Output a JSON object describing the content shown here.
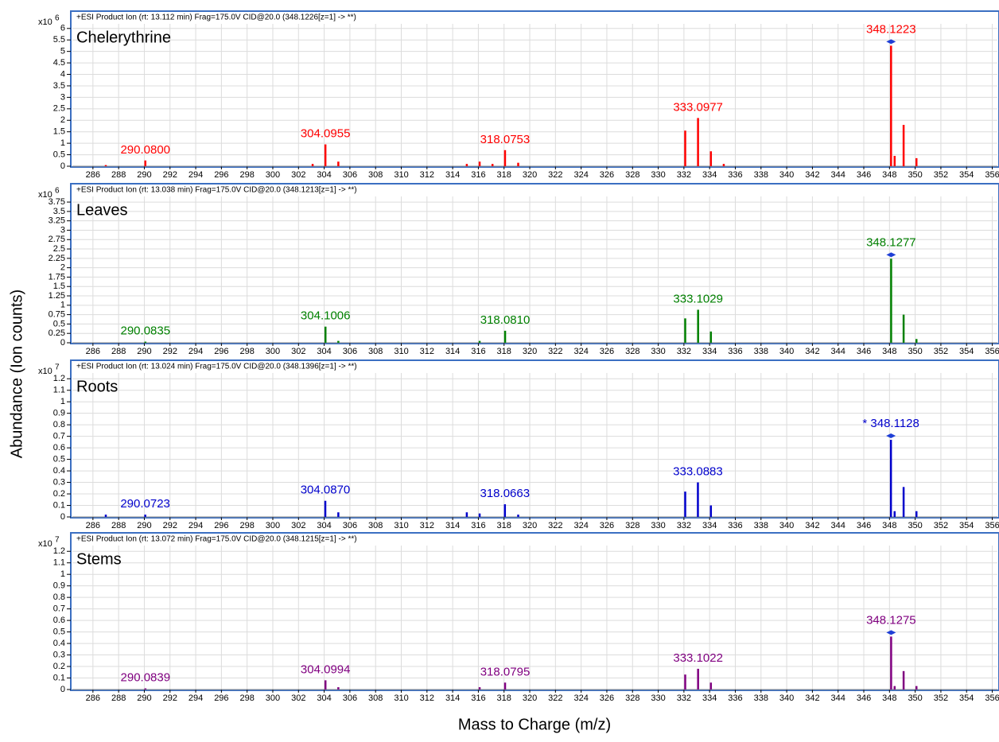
{
  "axis_labels": {
    "y": "Abundance (Ion counts)",
    "x": "Mass to Charge (m/z)"
  },
  "chart_data": [
    {
      "type": "bar",
      "header": "+ESI Product Ion (rt: 13.112 min) Frag=175.0V CID@20.0 (348.1226[z=1] -> **)",
      "title": "Chelerythrine",
      "scale_label": "x10",
      "scale_exponent": 6,
      "color": "#ff0000",
      "grid": true,
      "x": [
        287,
        290.08,
        303.1,
        304.0955,
        305.1,
        315.1,
        316.1,
        317.1,
        318.0753,
        319.1,
        332.1,
        333.0977,
        334.1,
        335.1,
        348.1223,
        348.4,
        349.1,
        350.1
      ],
      "values": [
        0.05,
        0.25,
        0.1,
        0.95,
        0.2,
        0.1,
        0.2,
        0.1,
        0.7,
        0.15,
        1.55,
        2.1,
        0.65,
        0.1,
        5.25,
        0.45,
        1.8,
        0.35
      ],
      "labels": [
        null,
        "290.0800",
        null,
        "304.0955",
        null,
        null,
        null,
        null,
        "318.0753",
        null,
        null,
        "333.0977",
        null,
        null,
        "348.1223",
        null,
        null,
        null
      ],
      "xlim": [
        284.4,
        356.4
      ],
      "ylim": [
        0,
        6.2
      ],
      "xticks": [
        286,
        288,
        290,
        292,
        294,
        296,
        298,
        300,
        302,
        304,
        306,
        308,
        310,
        312,
        314,
        316,
        318,
        320,
        322,
        324,
        326,
        328,
        330,
        332,
        334,
        336,
        338,
        340,
        342,
        344,
        346,
        348,
        350,
        352,
        354,
        356
      ],
      "yticks": [
        0,
        0.5,
        1,
        1.5,
        2,
        2.5,
        3,
        3.5,
        4,
        4.5,
        5,
        5.5,
        6
      ]
    },
    {
      "type": "bar",
      "header": "+ESI Product Ion (rt: 13.038 min) Frag=175.0V CID@20.0 (348.1213[z=1] -> **)",
      "title": "Leaves",
      "scale_label": "x10",
      "scale_exponent": 6,
      "color": "#008000",
      "grid": true,
      "x": [
        290.0835,
        304.1006,
        305.1,
        316.1,
        318.081,
        332.1,
        333.1029,
        334.1,
        348.1277,
        349.1,
        350.1
      ],
      "values": [
        0.03,
        0.43,
        0.05,
        0.05,
        0.32,
        0.65,
        0.88,
        0.3,
        2.24,
        0.75,
        0.1
      ],
      "labels": [
        "290.0835",
        "304.1006",
        null,
        null,
        "318.0810",
        null,
        "333.1029",
        null,
        "348.1277",
        null,
        null
      ],
      "xlim": [
        284.4,
        356.4
      ],
      "ylim": [
        0,
        3.9
      ],
      "xticks": [
        286,
        288,
        290,
        292,
        294,
        296,
        298,
        300,
        302,
        304,
        306,
        308,
        310,
        312,
        314,
        316,
        318,
        320,
        322,
        324,
        326,
        328,
        330,
        332,
        334,
        336,
        338,
        340,
        342,
        344,
        346,
        348,
        350,
        352,
        354,
        356
      ],
      "yticks": [
        0,
        0.25,
        0.5,
        0.75,
        1,
        1.25,
        1.5,
        1.75,
        2,
        2.25,
        2.5,
        2.75,
        3,
        3.25,
        3.5,
        3.75
      ]
    },
    {
      "type": "bar",
      "header": "+ESI Product Ion (rt: 13.024 min) Frag=175.0V CID@20.0 (348.1396[z=1] -> **)",
      "title": "Roots",
      "scale_label": "x10",
      "scale_exponent": 7,
      "color": "#0000cc",
      "grid": true,
      "x": [
        287,
        290.0723,
        304.087,
        305.1,
        315.1,
        316.1,
        318.0663,
        319.1,
        332.1,
        333.0883,
        334.1,
        348.1128,
        348.4,
        349.1,
        350.1
      ],
      "values": [
        0.02,
        0.02,
        0.14,
        0.04,
        0.04,
        0.03,
        0.11,
        0.02,
        0.22,
        0.3,
        0.1,
        0.67,
        0.05,
        0.26,
        0.05
      ],
      "labels": [
        null,
        "290.0723",
        "304.0870",
        null,
        null,
        null,
        "318.0663",
        null,
        null,
        "333.0883",
        null,
        "* 348.1128",
        null,
        null,
        null
      ],
      "xlim": [
        284.4,
        356.4
      ],
      "ylim": [
        0,
        1.25
      ],
      "xticks": [
        286,
        288,
        290,
        292,
        294,
        296,
        298,
        300,
        302,
        304,
        306,
        308,
        310,
        312,
        314,
        316,
        318,
        320,
        322,
        324,
        326,
        328,
        330,
        332,
        334,
        336,
        338,
        340,
        342,
        344,
        346,
        348,
        350,
        352,
        354,
        356
      ],
      "yticks": [
        0,
        0.1,
        0.2,
        0.3,
        0.4,
        0.5,
        0.6,
        0.7,
        0.8,
        0.9,
        1,
        1.1,
        1.2
      ]
    },
    {
      "type": "bar",
      "header": "+ESI Product Ion (rt: 13.072 min) Frag=175.0V CID@20.0 (348.1215[z=1] -> **)",
      "title": "Stems",
      "scale_label": "x10",
      "scale_exponent": 7,
      "color": "#800080",
      "grid": true,
      "x": [
        290.0839,
        304.0994,
        305.1,
        316.1,
        318.0795,
        332.1,
        333.1022,
        334.1,
        348.1275,
        348.4,
        349.1,
        350.1
      ],
      "values": [
        0.01,
        0.08,
        0.02,
        0.02,
        0.06,
        0.13,
        0.18,
        0.06,
        0.46,
        0.03,
        0.16,
        0.03
      ],
      "labels": [
        "290.0839",
        "304.0994",
        null,
        null,
        "318.0795",
        null,
        "333.1022",
        null,
        "348.1275",
        null,
        null,
        null
      ],
      "xlim": [
        284.4,
        356.4
      ],
      "ylim": [
        0,
        1.25
      ],
      "xticks": [
        286,
        288,
        290,
        292,
        294,
        296,
        298,
        300,
        302,
        304,
        306,
        308,
        310,
        312,
        314,
        316,
        318,
        320,
        322,
        324,
        326,
        328,
        330,
        332,
        334,
        336,
        338,
        340,
        342,
        344,
        346,
        348,
        350,
        352,
        354,
        356
      ],
      "yticks": [
        0,
        0.1,
        0.2,
        0.3,
        0.4,
        0.5,
        0.6,
        0.7,
        0.8,
        0.9,
        1,
        1.1,
        1.2
      ]
    }
  ]
}
